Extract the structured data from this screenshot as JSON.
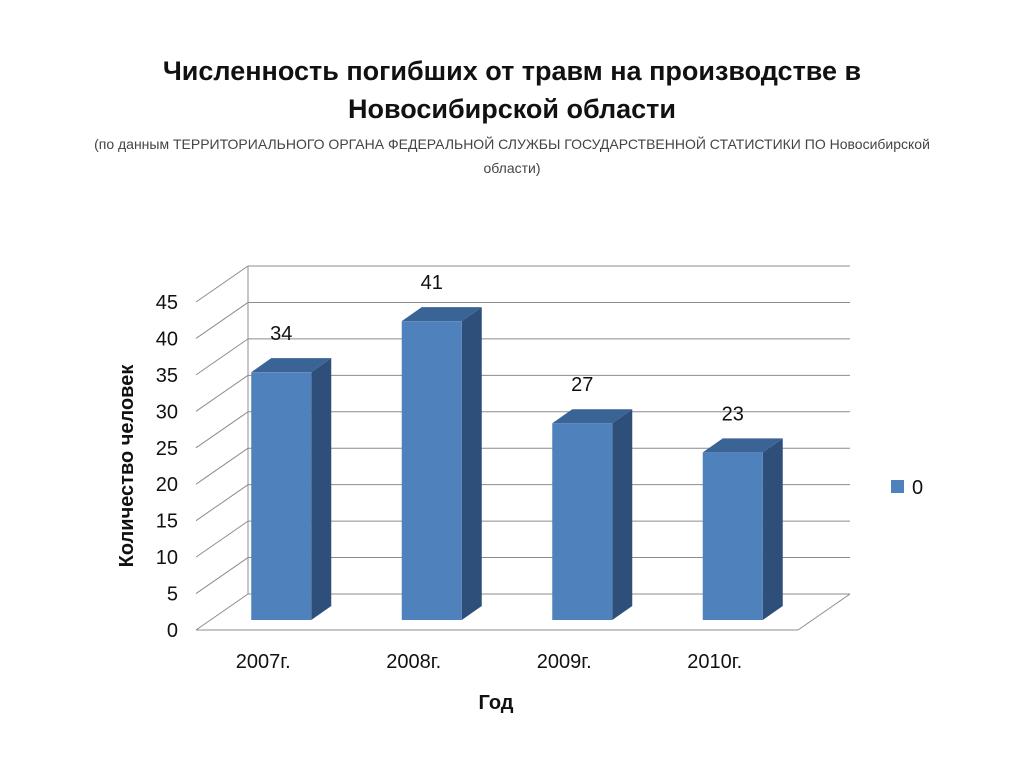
{
  "chart_data": {
    "type": "bar",
    "title": "Численность погибших от травм на производстве в Новосибирской области",
    "subtitle": "(по данным ТЕРРИТОРИАЛЬНОГО ОРГАНА ФЕДЕРАЛЬНОЙ СЛУЖБЫ ГОСУДАРСТВЕННОЙ СТАТИСТИКИ ПО Новосибирской области)",
    "categories": [
      "2007г.",
      "2008г.",
      "2009г.",
      "2010г."
    ],
    "series": [
      {
        "name": "0",
        "values": [
          34,
          41,
          27,
          23
        ],
        "color": "#4F81BD"
      }
    ],
    "xlabel": "Год",
    "ylabel": "Количество человек",
    "ylim": [
      0,
      45
    ],
    "yticks": [
      0,
      5,
      10,
      15,
      20,
      25,
      30,
      35,
      40,
      45
    ],
    "grid": true,
    "style": "3d",
    "legend_position": "right",
    "data_labels": true
  }
}
